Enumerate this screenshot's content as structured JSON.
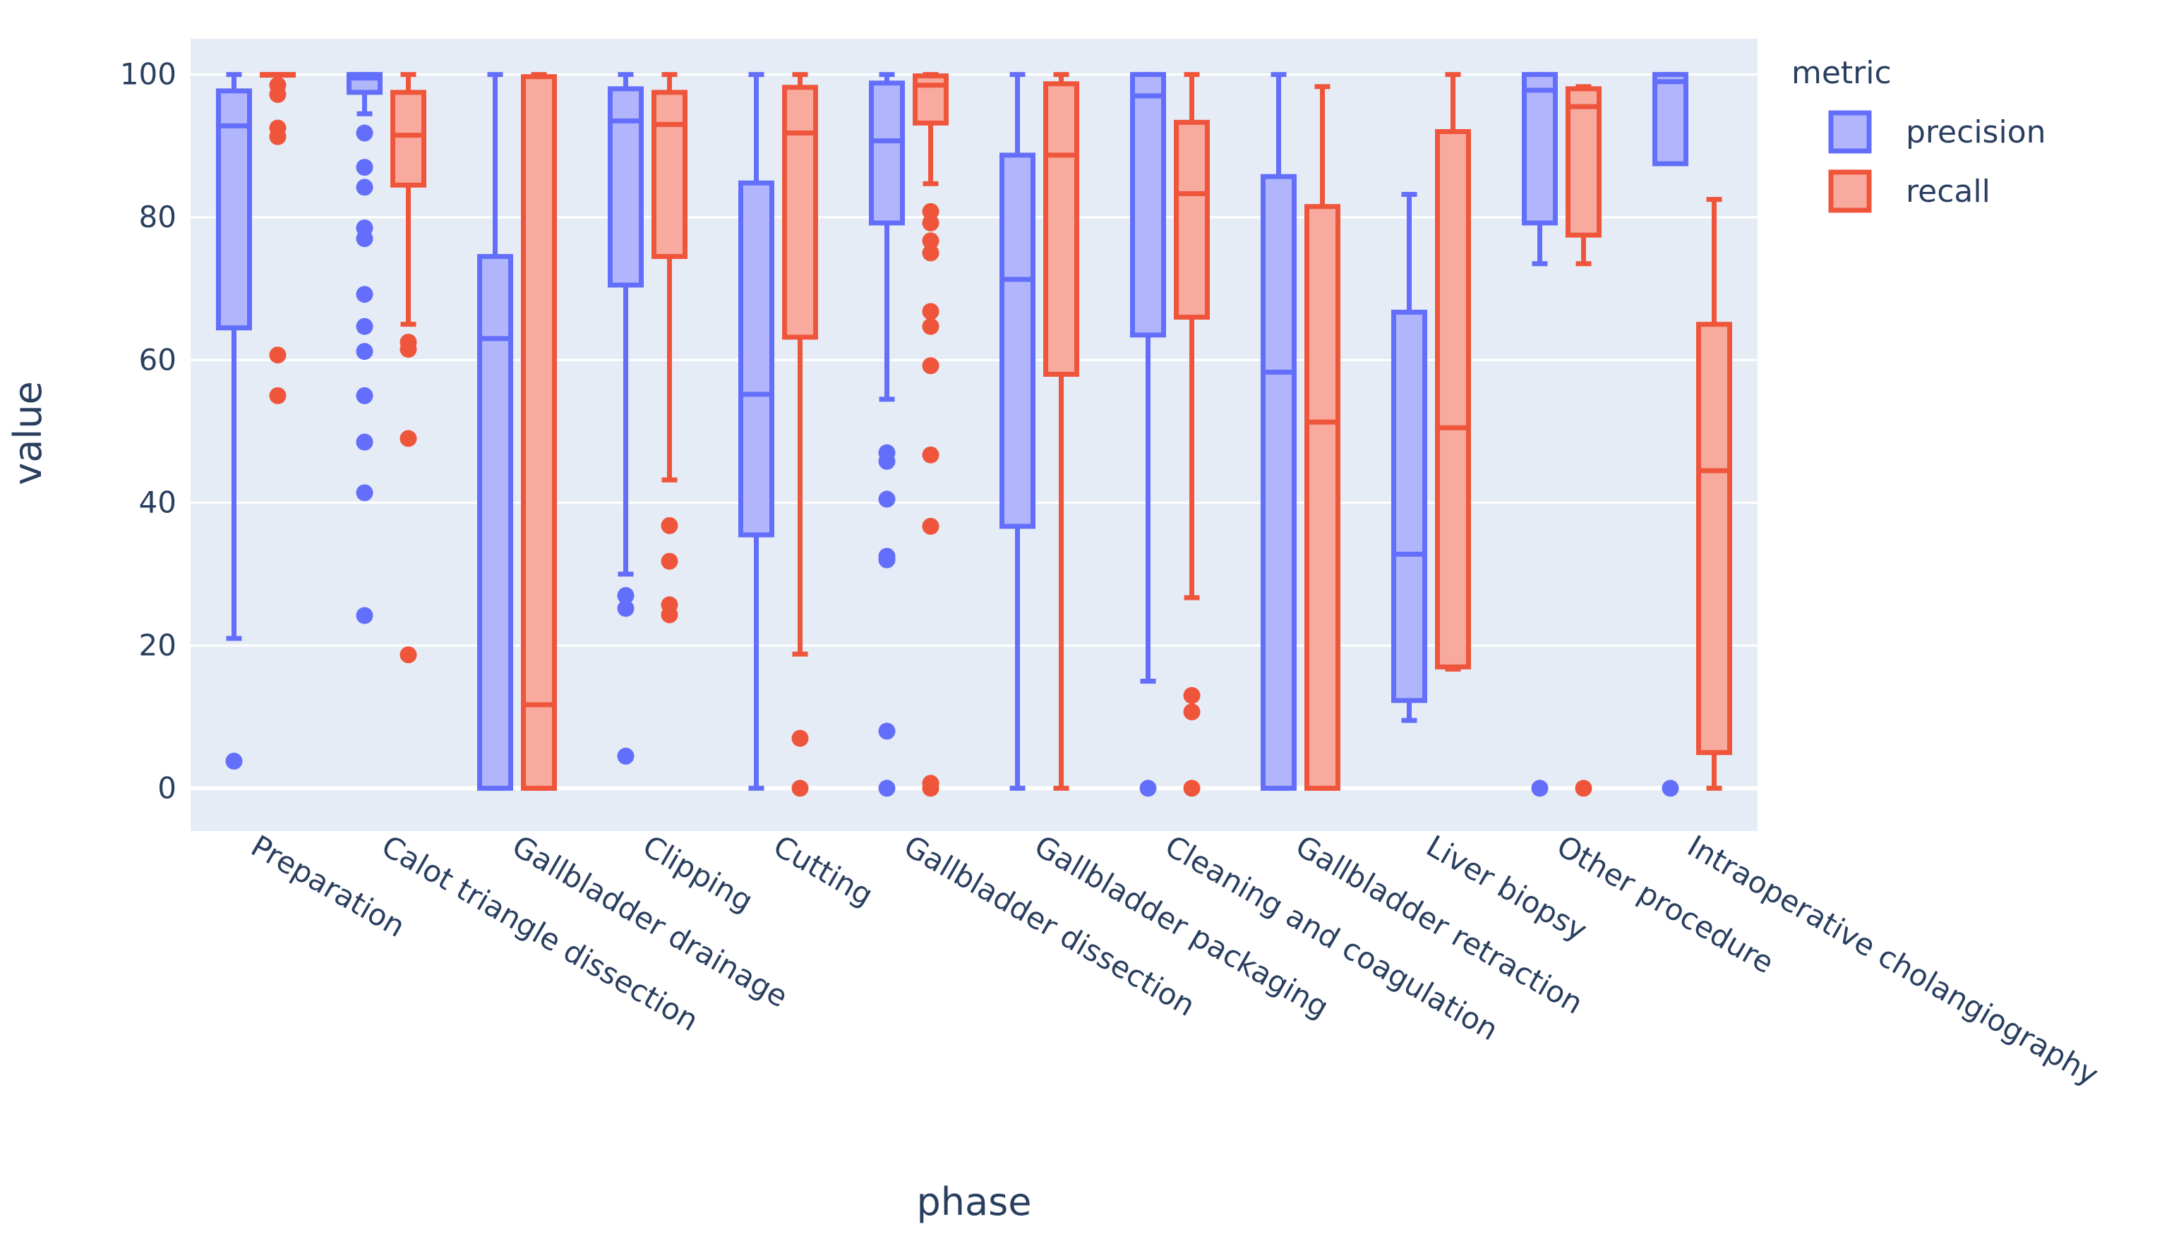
{
  "chart_data": {
    "type": "box",
    "title": "",
    "xlabel": "phase",
    "ylabel": "value",
    "ylim": [
      -6,
      105
    ],
    "yticks": [
      0,
      20,
      40,
      60,
      80,
      100
    ],
    "ytick_labels": [
      "0",
      "20",
      "40",
      "60",
      "80",
      "100"
    ],
    "grid": true,
    "legend": {
      "title": "metric",
      "position": "top-right"
    },
    "colors": {
      "plot_bg": "#e5ecf6",
      "grid": "#ffffff",
      "text": "#2a3f5f"
    },
    "categories": [
      "Preparation",
      "Calot triangle dissection",
      "Gallbladder drainage",
      "Clipping",
      "Cutting",
      "Gallbladder dissection",
      "Gallbladder packaging",
      "Cleaning and coagulation",
      "Gallbladder retraction",
      "Liver biopsy",
      "Other procedure",
      "Intraoperative cholangiography"
    ],
    "series": [
      {
        "name": "precision",
        "color": "#636efa",
        "fill": "#b1b6fc",
        "boxes": [
          {
            "min": 21,
            "q1": 64.5,
            "median": 92.8,
            "q3": 97.7,
            "max": 100,
            "outliers": [
              3.8
            ]
          },
          {
            "min": 94.5,
            "q1": 97.5,
            "median": 99.5,
            "q3": 100,
            "max": 100,
            "outliers": [
              91.8,
              87,
              84.2,
              78.5,
              77,
              69.2,
              64.7,
              61.2,
              55,
              48.5,
              41.4,
              24.2
            ]
          },
          {
            "min": 0,
            "q1": 0,
            "median": 63,
            "q3": 74.5,
            "max": 100,
            "outliers": []
          },
          {
            "min": 30,
            "q1": 70.5,
            "median": 93.5,
            "q3": 98,
            "max": 100,
            "outliers": [
              27,
              25.2,
              4.5
            ]
          },
          {
            "min": 0,
            "q1": 35.5,
            "median": 55.2,
            "q3": 84.8,
            "max": 100,
            "outliers": []
          },
          {
            "min": 54.5,
            "q1": 79.2,
            "median": 90.7,
            "q3": 98.8,
            "max": 100,
            "outliers": [
              47,
              45.8,
              40.5,
              32.5,
              32,
              8,
              0
            ]
          },
          {
            "min": 0,
            "q1": 36.7,
            "median": 71.3,
            "q3": 88.7,
            "max": 100,
            "outliers": []
          },
          {
            "min": 15,
            "q1": 63.5,
            "median": 97,
            "q3": 100,
            "max": 100,
            "outliers": [
              0
            ]
          },
          {
            "min": 0,
            "q1": 0,
            "median": 58.3,
            "q3": 85.7,
            "max": 100,
            "outliers": []
          },
          {
            "min": 9.5,
            "q1": 12.3,
            "median": 32.8,
            "q3": 66.7,
            "max": 83.2,
            "outliers": []
          },
          {
            "min": 73.5,
            "q1": 79.2,
            "median": 97.8,
            "q3": 100,
            "max": 100,
            "outliers": [
              0
            ]
          },
          {
            "min": 87.5,
            "q1": 87.5,
            "median": 99,
            "q3": 100,
            "max": 100,
            "outliers": [
              0
            ]
          }
        ]
      },
      {
        "name": "recall",
        "color": "#ef553b",
        "fill": "#f7aa9d",
        "boxes": [
          {
            "min": 100,
            "q1": 100,
            "median": 100,
            "q3": 100,
            "max": 100,
            "outliers": [
              98.5,
              97.2,
              92.5,
              91.3,
              60.7,
              55
            ]
          },
          {
            "min": 65,
            "q1": 84.5,
            "median": 91.5,
            "q3": 97.5,
            "max": 100,
            "outliers": [
              62.5,
              61.5,
              49,
              18.7
            ]
          },
          {
            "min": 0,
            "q1": 0,
            "median": 11.7,
            "q3": 99.7,
            "max": 100,
            "outliers": []
          },
          {
            "min": 43.2,
            "q1": 74.5,
            "median": 93,
            "q3": 97.5,
            "max": 100,
            "outliers": [
              36.8,
              31.8,
              25.7,
              24.3
            ]
          },
          {
            "min": 18.8,
            "q1": 63.2,
            "median": 91.8,
            "q3": 98.2,
            "max": 100,
            "outliers": [
              7,
              0
            ]
          },
          {
            "min": 84.7,
            "q1": 93.2,
            "median": 98.5,
            "q3": 99.8,
            "max": 100,
            "outliers": [
              80.8,
              79.2,
              76.7,
              75,
              66.8,
              64.7,
              59.2,
              46.7,
              36.7,
              0.7,
              0
            ]
          },
          {
            "min": 0,
            "q1": 58,
            "median": 88.7,
            "q3": 98.7,
            "max": 100,
            "outliers": []
          },
          {
            "min": 26.7,
            "q1": 66,
            "median": 83.3,
            "q3": 93.3,
            "max": 100,
            "outliers": [
              13,
              10.7,
              0
            ]
          },
          {
            "min": 0,
            "q1": 0,
            "median": 51.3,
            "q3": 81.5,
            "max": 98.3,
            "outliers": []
          },
          {
            "min": 16.7,
            "q1": 17,
            "median": 50.5,
            "q3": 92,
            "max": 100,
            "outliers": []
          },
          {
            "min": 73.5,
            "q1": 77.5,
            "median": 95.5,
            "q3": 98,
            "max": 98.3,
            "outliers": [
              0
            ]
          },
          {
            "min": 0,
            "q1": 5,
            "median": 44.5,
            "q3": 65,
            "max": 82.5,
            "outliers": []
          }
        ]
      }
    ]
  }
}
